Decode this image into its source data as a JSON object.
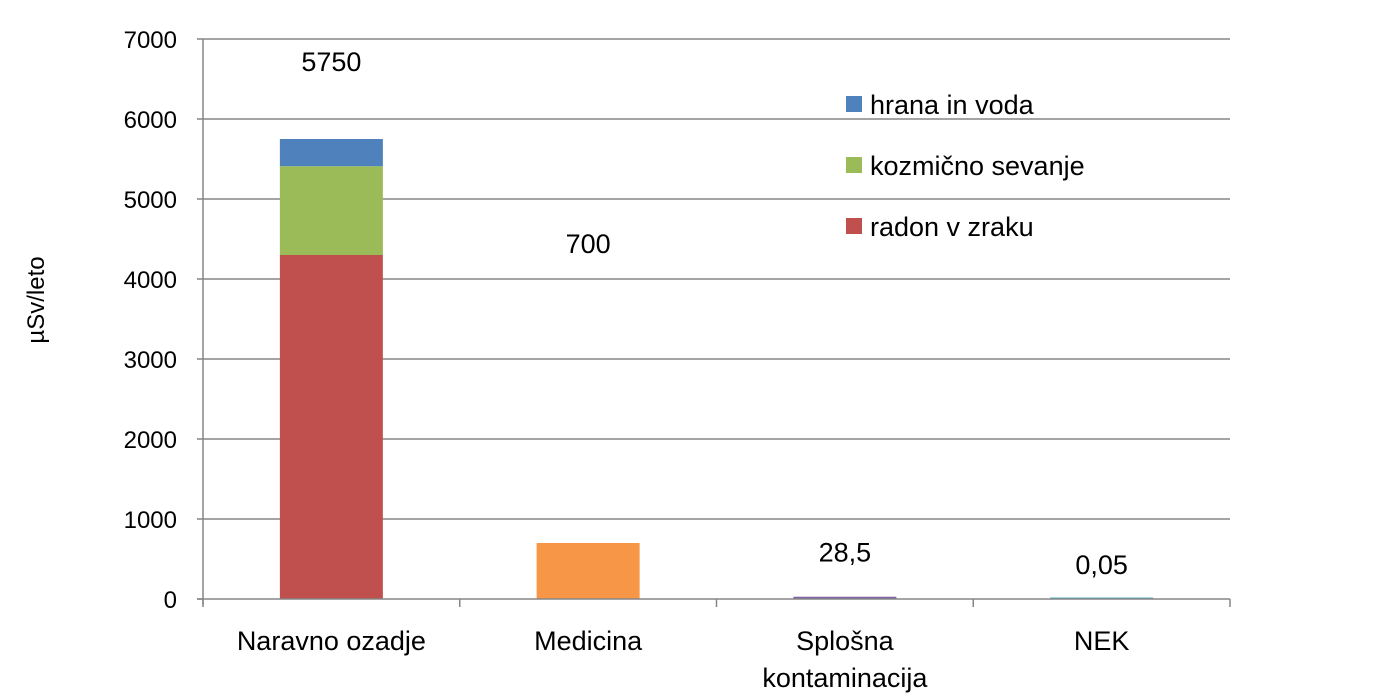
{
  "chart_data": {
    "type": "bar",
    "stacked": true,
    "categories": [
      "Naravno ozadje",
      "Medicina",
      "Splošna kontaminacija",
      "NEK"
    ],
    "category_lines": [
      [
        "Naravno ozadje"
      ],
      [
        "Medicina"
      ],
      [
        "Splošna",
        "kontaminacija"
      ],
      [
        "NEK"
      ]
    ],
    "series": [
      {
        "name": "radon v zraku",
        "color": "#C0504D",
        "values": [
          4300,
          null,
          null,
          null
        ]
      },
      {
        "name": "kozmično sevanje",
        "color": "#9BBB59",
        "values": [
          1110,
          null,
          null,
          null
        ]
      },
      {
        "name": "hrana in voda",
        "color": "#4F81BD",
        "values": [
          340,
          null,
          null,
          null
        ]
      },
      {
        "name": "",
        "color": "#F79646",
        "values": [
          null,
          700,
          null,
          null
        ]
      },
      {
        "name": "",
        "color": "#8064A2",
        "values": [
          null,
          null,
          28.5,
          null
        ]
      },
      {
        "name": "",
        "color": "#4BACC6",
        "values": [
          null,
          null,
          null,
          0.05
        ]
      }
    ],
    "data_labels": [
      "5750",
      "700",
      "28,5",
      "0,05"
    ],
    "ylabel": "µSv/leto",
    "xlabel": "",
    "title": "",
    "ylim": [
      0,
      7000
    ],
    "yticks": [
      0,
      1000,
      2000,
      3000,
      4000,
      5000,
      6000,
      7000
    ],
    "grid": true,
    "legend": {
      "placement": "top-right",
      "entries": [
        {
          "label": "hrana in voda",
          "color": "#4F81BD"
        },
        {
          "label": "kozmično sevanje",
          "color": "#9BBB59"
        },
        {
          "label": "radon v zraku",
          "color": "#C0504D"
        }
      ]
    },
    "gridline_color": "#868686",
    "axis_color": "#868686"
  }
}
